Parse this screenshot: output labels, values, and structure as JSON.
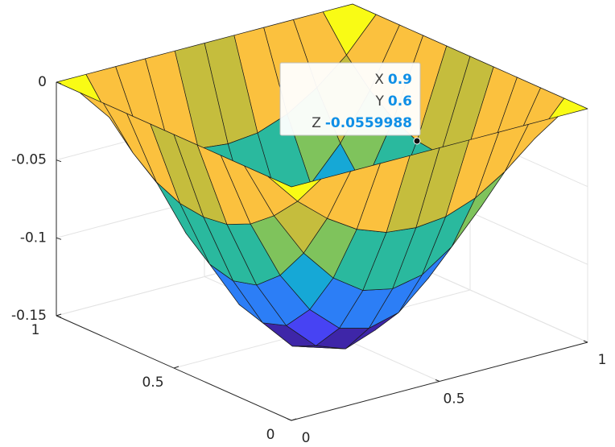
{
  "chart_data": {
    "type": "surface",
    "x": [
      0,
      0.1,
      0.2,
      0.3,
      0.4,
      0.5,
      0.6,
      0.7,
      0.8,
      0.9,
      1
    ],
    "y": [
      0,
      0.1,
      0.2,
      0.3,
      0.4,
      0.5,
      0.6,
      0.7,
      0.8,
      0.9,
      1
    ],
    "z": [
      [
        0,
        0,
        0,
        0,
        0,
        0,
        0,
        0,
        0,
        0,
        0
      ],
      [
        0,
        -0.021,
        -0.037,
        -0.049,
        -0.056,
        -0.058,
        -0.056,
        -0.049,
        -0.037,
        -0.021,
        0
      ],
      [
        0,
        -0.037,
        -0.066,
        -0.087,
        -0.1,
        -0.104,
        -0.1,
        -0.087,
        -0.066,
        -0.037,
        0
      ],
      [
        0,
        -0.049,
        -0.087,
        -0.114,
        -0.131,
        -0.136,
        -0.131,
        -0.114,
        -0.087,
        -0.049,
        0
      ],
      [
        0,
        -0.056,
        -0.1,
        -0.131,
        -0.149,
        -0.156,
        -0.149,
        -0.131,
        -0.1,
        -0.056,
        0
      ],
      [
        0,
        -0.058,
        -0.104,
        -0.136,
        -0.156,
        -0.162,
        -0.156,
        -0.136,
        -0.104,
        -0.058,
        0
      ],
      [
        0,
        -0.056,
        -0.1,
        -0.131,
        -0.149,
        -0.156,
        -0.149,
        -0.131,
        -0.1,
        -0.056,
        0
      ],
      [
        0,
        -0.049,
        -0.087,
        -0.114,
        -0.131,
        -0.136,
        -0.131,
        -0.114,
        -0.087,
        -0.049,
        0
      ],
      [
        0,
        -0.037,
        -0.066,
        -0.087,
        -0.1,
        -0.104,
        -0.1,
        -0.087,
        -0.066,
        -0.037,
        0
      ],
      [
        0,
        -0.021,
        -0.037,
        -0.049,
        -0.056,
        -0.058,
        -0.056,
        -0.049,
        -0.037,
        -0.021,
        0
      ],
      [
        0,
        0,
        0,
        0,
        0,
        0,
        0,
        0,
        0,
        0,
        0
      ]
    ],
    "xlim": [
      0,
      1
    ],
    "ylim": [
      0,
      1
    ],
    "zlim": [
      -0.15,
      0
    ],
    "xticks": [
      0,
      0.5,
      1
    ],
    "yticks": [
      0,
      0.5,
      1
    ],
    "zticks": [
      -0.15,
      -0.1,
      -0.05,
      0
    ],
    "grid": true,
    "colormap": [
      "#3e26a8",
      "#4743f3",
      "#2c7ef6",
      "#16a8d6",
      "#2ab99e",
      "#7fc35c",
      "#c5bd3d",
      "#fbc13e",
      "#f9fb15"
    ],
    "datatip": {
      "labels": [
        "X",
        "Y",
        "Z"
      ],
      "values": [
        0.9,
        0.6,
        -0.0559988
      ]
    }
  }
}
